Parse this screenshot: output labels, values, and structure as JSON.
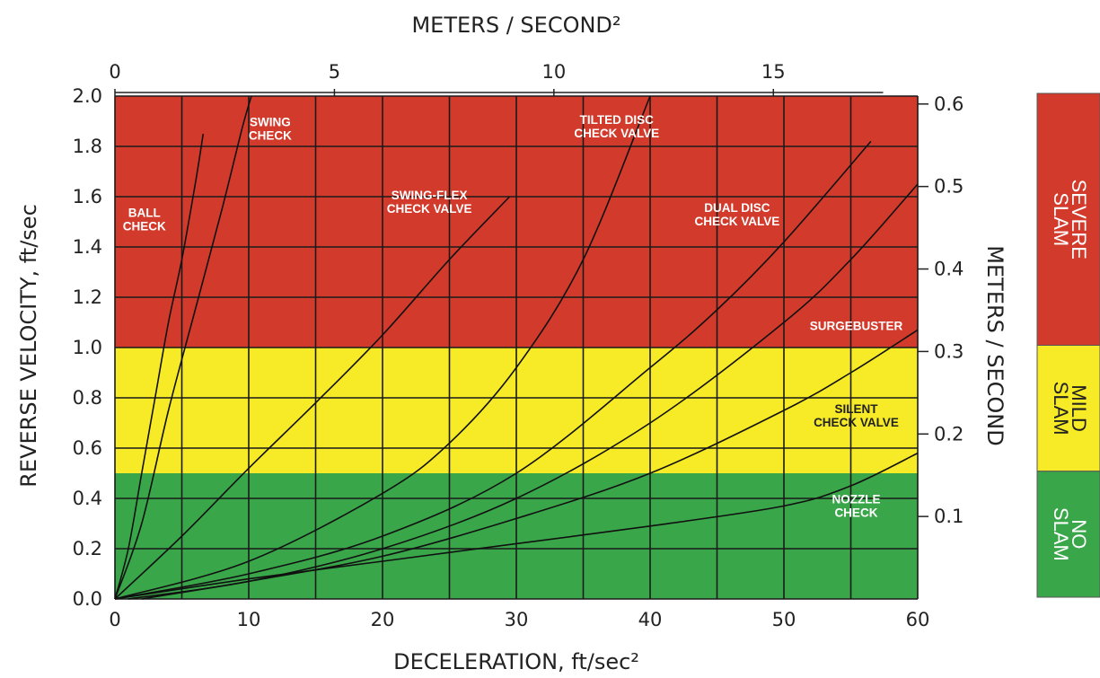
{
  "chart_data": {
    "type": "line",
    "title": "",
    "xlabel": "DECELERATION, ft/sec²",
    "ylabel": "REVERSE VELOCITY, ft/sec",
    "x2label": "METERS / SECOND²",
    "y2label": "METERS / SECOND",
    "xlim": [
      0,
      60
    ],
    "ylim": [
      0,
      2.0
    ],
    "x_ticks": [
      "0",
      "10",
      "20",
      "30",
      "40",
      "50",
      "60"
    ],
    "y_ticks": [
      "0.0",
      "0.2",
      "0.4",
      "0.6",
      "0.8",
      "1.0",
      "1.2",
      "1.4",
      "1.6",
      "1.8",
      "2.0"
    ],
    "x2_ticks": [
      "0",
      "5",
      "10",
      "15"
    ],
    "y2_ticks": [
      "0.1",
      "0.2",
      "0.3",
      "0.4",
      "0.5",
      "0.6"
    ],
    "grid": true,
    "zones": [
      {
        "name": "NO SLAM",
        "from": 0.0,
        "to": 0.5,
        "color": "#3aa64a"
      },
      {
        "name": "MILD SLAM",
        "from": 0.5,
        "to": 1.0,
        "color": "#f7ea26"
      },
      {
        "name": "SEVERE SLAM",
        "from": 1.0,
        "to": 2.0,
        "color": "#d23a2c"
      }
    ],
    "series": [
      {
        "name": "BALL CHECK",
        "points": [
          [
            0,
            0
          ],
          [
            1,
            0.2
          ],
          [
            2,
            0.5
          ],
          [
            3,
            0.8
          ],
          [
            4,
            1.1
          ],
          [
            5,
            1.35
          ],
          [
            6,
            1.65
          ],
          [
            6.6,
            1.85
          ]
        ]
      },
      {
        "name": "SWING CHECK",
        "points": [
          [
            0,
            0
          ],
          [
            2,
            0.3
          ],
          [
            4,
            0.75
          ],
          [
            6,
            1.15
          ],
          [
            8,
            1.55
          ],
          [
            9.5,
            1.87
          ],
          [
            10.2,
            2.0
          ]
        ]
      },
      {
        "name": "SWING-FLEX CHECK VALVE",
        "points": [
          [
            0,
            0
          ],
          [
            5,
            0.25
          ],
          [
            10,
            0.52
          ],
          [
            15,
            0.78
          ],
          [
            20,
            1.05
          ],
          [
            25,
            1.35
          ],
          [
            29.5,
            1.6
          ]
        ]
      },
      {
        "name": "TILTED DISC CHECK VALVE",
        "points": [
          [
            0,
            0
          ],
          [
            10,
            0.15
          ],
          [
            20,
            0.42
          ],
          [
            25,
            0.62
          ],
          [
            30,
            0.92
          ],
          [
            35,
            1.35
          ],
          [
            40,
            2.0
          ]
        ]
      },
      {
        "name": "DUAL DISC CHECK VALVE",
        "points": [
          [
            0,
            0
          ],
          [
            10,
            0.1
          ],
          [
            20,
            0.25
          ],
          [
            30,
            0.5
          ],
          [
            40,
            0.92
          ],
          [
            45,
            1.15
          ],
          [
            50,
            1.42
          ],
          [
            56.5,
            1.82
          ]
        ]
      },
      {
        "name": "SURGEBUSTER",
        "points": [
          [
            1,
            0
          ],
          [
            10,
            0.07
          ],
          [
            20,
            0.2
          ],
          [
            30,
            0.4
          ],
          [
            40,
            0.7
          ],
          [
            50,
            1.1
          ],
          [
            55,
            1.35
          ],
          [
            60,
            1.65
          ]
        ]
      },
      {
        "name": "SILENT CHECK VALVE",
        "points": [
          [
            2,
            0
          ],
          [
            10,
            0.07
          ],
          [
            20,
            0.17
          ],
          [
            30,
            0.32
          ],
          [
            40,
            0.5
          ],
          [
            50,
            0.75
          ],
          [
            55,
            0.9
          ],
          [
            60,
            1.07
          ]
        ]
      },
      {
        "name": "NOZZLE CHECK",
        "points": [
          [
            0,
            0
          ],
          [
            10,
            0.08
          ],
          [
            20,
            0.15
          ],
          [
            30,
            0.22
          ],
          [
            40,
            0.29
          ],
          [
            50,
            0.37
          ],
          [
            55,
            0.45
          ],
          [
            60,
            0.58
          ]
        ]
      }
    ]
  }
}
